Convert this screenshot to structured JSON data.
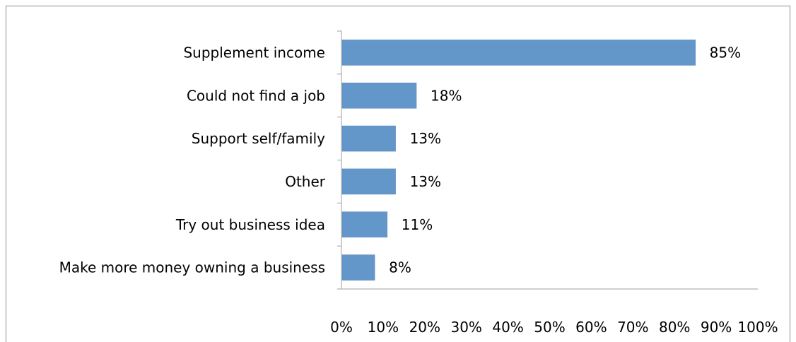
{
  "chart_data": {
    "type": "bar",
    "orientation": "horizontal",
    "title": "",
    "xlabel": "",
    "ylabel": "",
    "categories": [
      "Supplement income",
      "Could not find a job",
      "Support self/family",
      "Other",
      "Try out business idea",
      "Make more money owning a business"
    ],
    "values": [
      85,
      18,
      13,
      13,
      11,
      8
    ],
    "value_labels": [
      "85%",
      "18%",
      "13%",
      "13%",
      "11%",
      "8%"
    ],
    "xlim": [
      0,
      100
    ],
    "x_ticks": [
      "0%",
      "10%",
      "20%",
      "30%",
      "40%",
      "50%",
      "60%",
      "70%",
      "80%",
      "90%",
      "100%"
    ],
    "grid": false,
    "legend": "none",
    "bar_color": "#6497c9",
    "axis_color": "#9f9f9f"
  }
}
